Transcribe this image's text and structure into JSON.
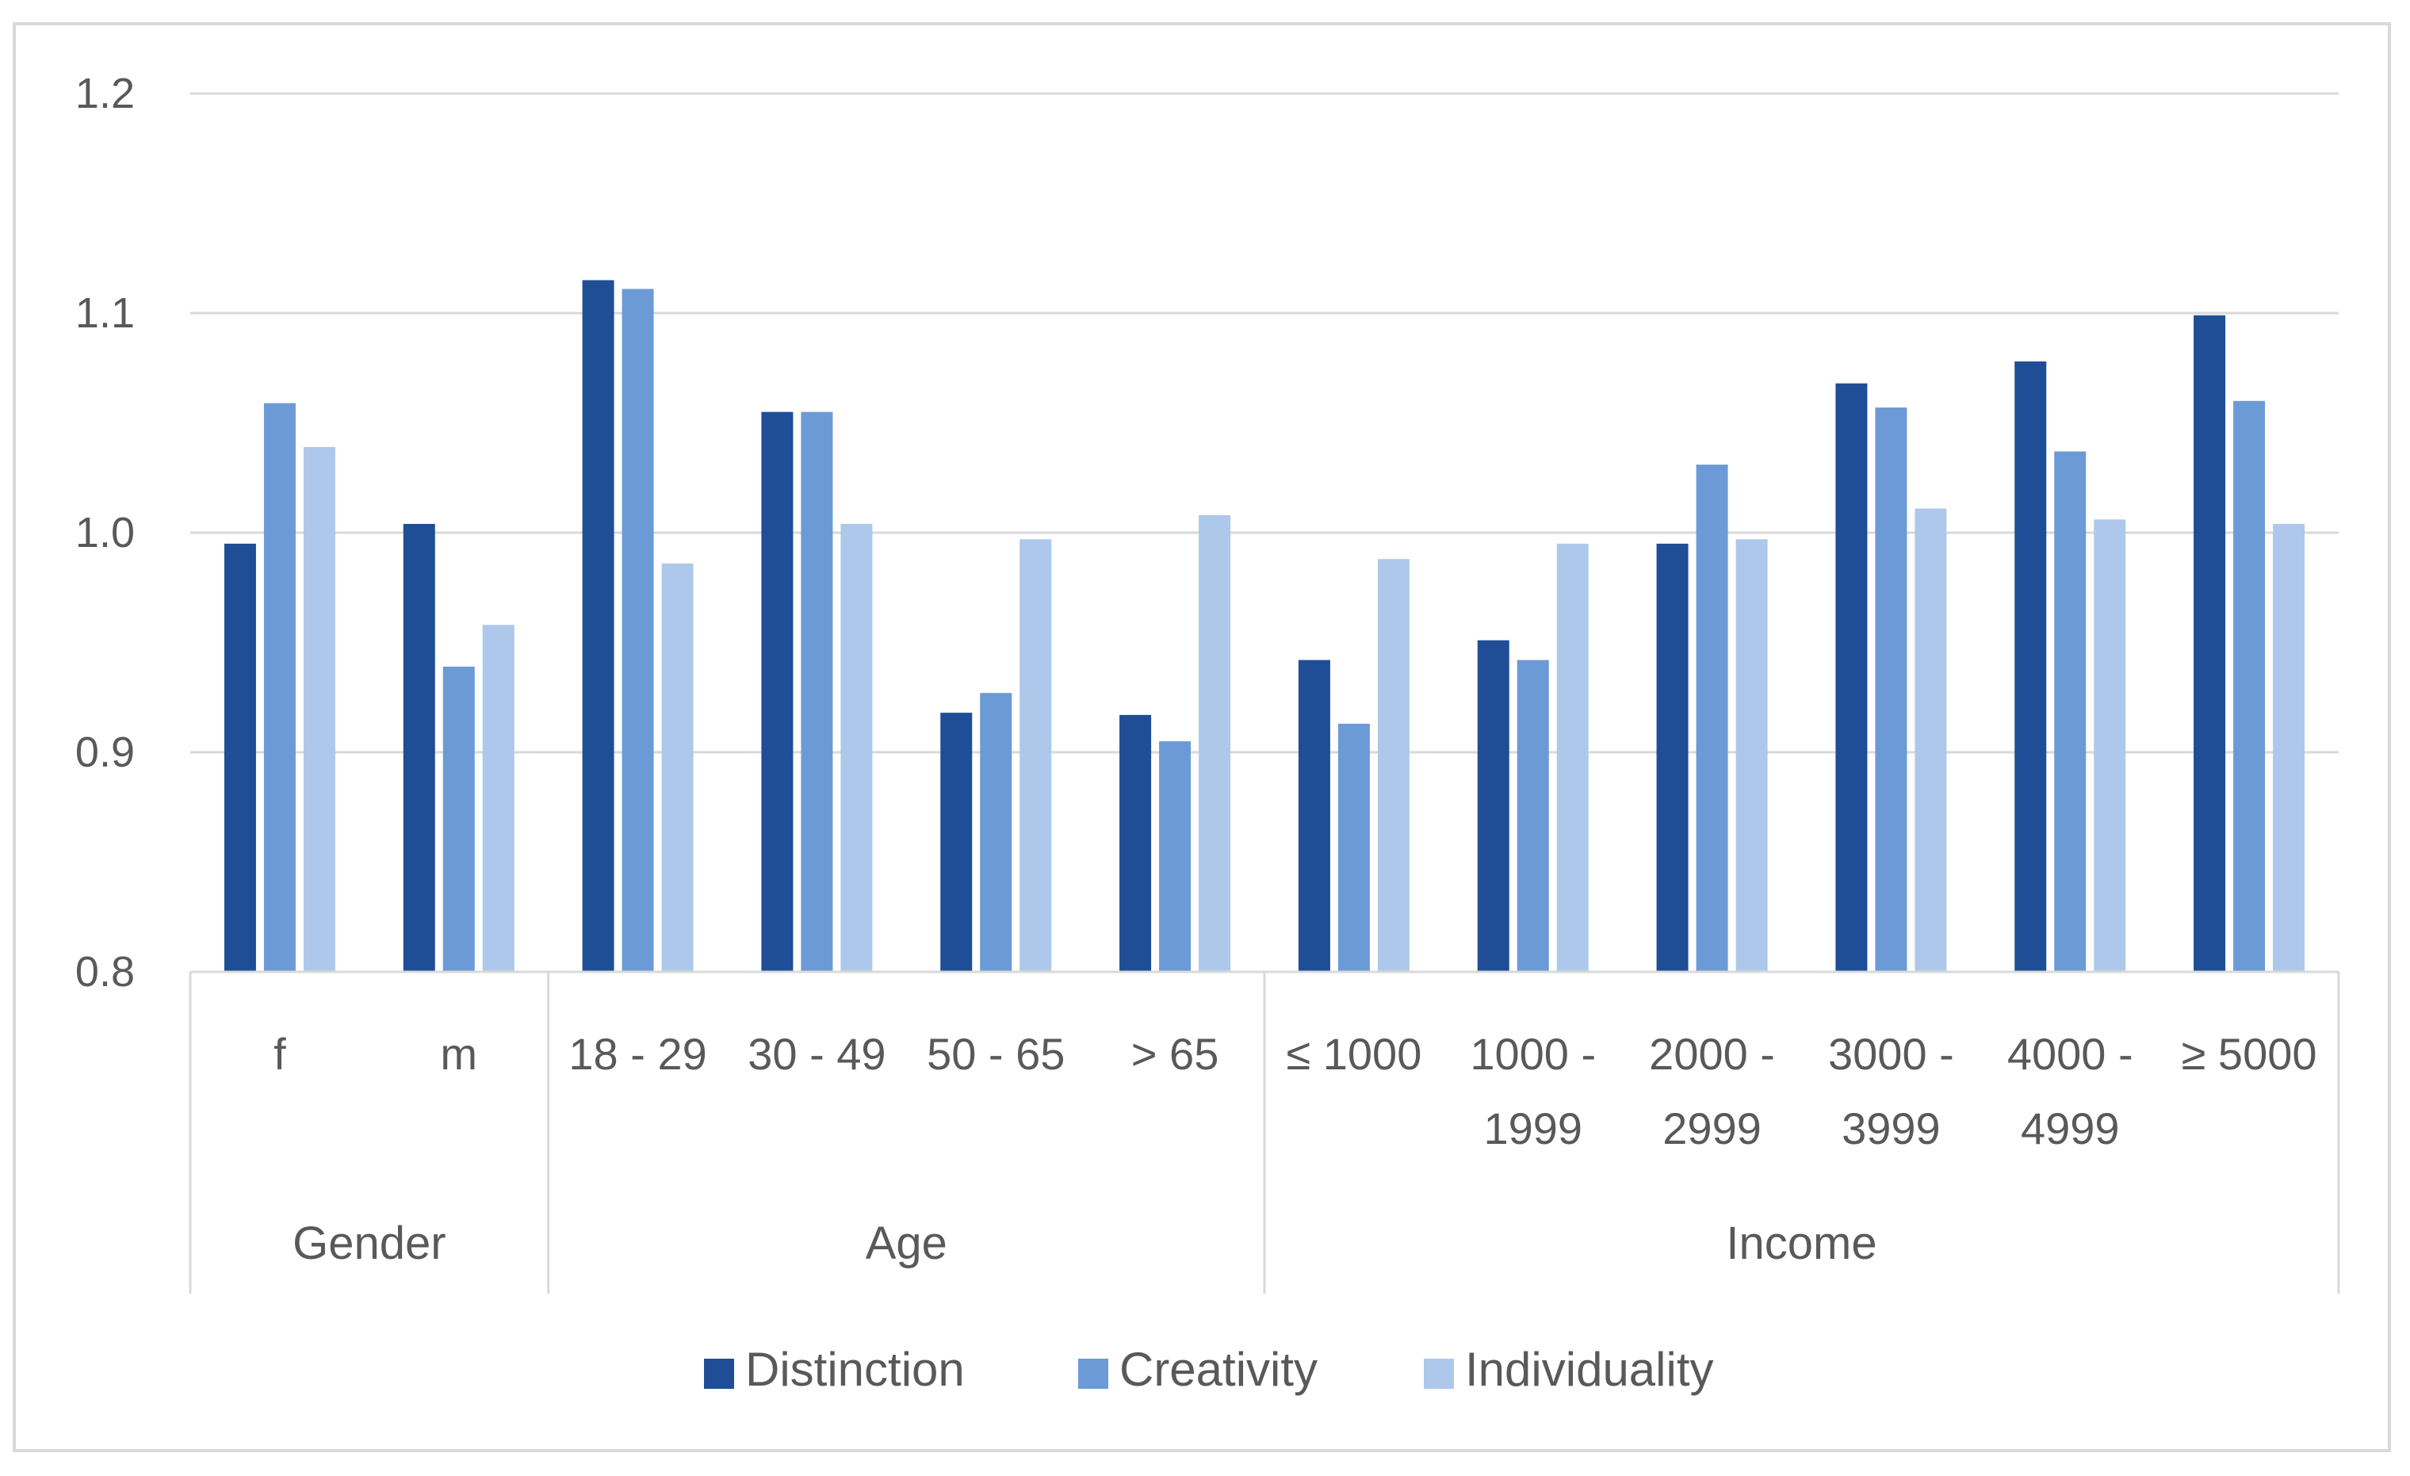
{
  "chart_data": {
    "type": "bar",
    "title": "",
    "xlabel": "",
    "ylabel": "",
    "ylim": [
      0.8,
      1.2
    ],
    "yticks": [
      "0.8",
      "0.9",
      "1.0",
      "1.1",
      "1.2"
    ],
    "grid": true,
    "legend_position": "bottom",
    "groups": [
      {
        "name": "Gender",
        "count": 2
      },
      {
        "name": "Age",
        "count": 4
      },
      {
        "name": "Income",
        "count": 6
      }
    ],
    "categories": [
      [
        "f"
      ],
      [
        "m"
      ],
      [
        "18 - 29"
      ],
      [
        "30 - 49"
      ],
      [
        "50 - 65"
      ],
      [
        "> 65"
      ],
      [
        "≤ 1000"
      ],
      [
        "1000 -",
        "1999"
      ],
      [
        "2000 -",
        "2999"
      ],
      [
        "3000 -",
        "3999"
      ],
      [
        "4000 -",
        "4999"
      ],
      [
        "≥ 5000"
      ]
    ],
    "series": [
      {
        "name": "Distinction",
        "color": "#1f4e96",
        "values": [
          0.995,
          1.004,
          1.115,
          1.055,
          0.918,
          0.917,
          0.942,
          0.951,
          0.995,
          1.068,
          1.078,
          1.099
        ]
      },
      {
        "name": "Creativity",
        "color": "#6c9ad6",
        "values": [
          1.059,
          0.939,
          1.111,
          1.055,
          0.927,
          0.905,
          0.913,
          0.942,
          1.031,
          1.057,
          1.037,
          1.06
        ]
      },
      {
        "name": "Individuality",
        "color": "#adc8ea",
        "values": [
          1.039,
          0.958,
          0.986,
          1.004,
          0.997,
          1.008,
          0.988,
          0.995,
          0.997,
          1.011,
          1.006,
          1.004
        ]
      }
    ]
  }
}
